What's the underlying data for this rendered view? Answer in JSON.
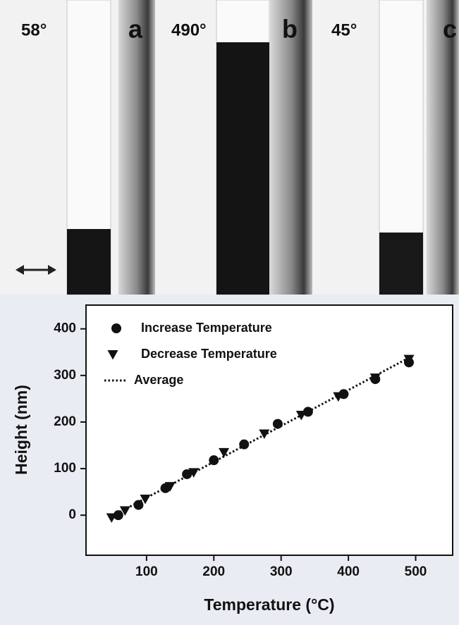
{
  "micrographs": [
    {
      "temperature": "58°",
      "label": "a"
    },
    {
      "temperature": "490°",
      "label": "b"
    },
    {
      "temperature": "45°",
      "label": "c"
    }
  ],
  "chart_data": {
    "type": "scatter",
    "xlabel": "Temperature (°C)",
    "ylabel": "Height (nm)",
    "xlim": [
      10,
      555
    ],
    "ylim": [
      -86,
      451
    ],
    "xticks": [
      100,
      200,
      300,
      400,
      500
    ],
    "yticks": [
      0,
      100,
      200,
      300,
      400
    ],
    "series": [
      {
        "name": "Increase Temperature",
        "marker": "circle",
        "color": "#111111",
        "x": [
          58,
          88,
          128,
          160,
          200,
          245,
          295,
          340,
          393,
          440,
          490
        ],
        "values": [
          0,
          22,
          58,
          88,
          118,
          152,
          196,
          222,
          260,
          292,
          328
        ]
      },
      {
        "name": "Decrease Temperature",
        "marker": "triangle",
        "color": "#111111",
        "x": [
          48,
          68,
          98,
          135,
          170,
          215,
          275,
          330,
          385,
          440,
          490
        ],
        "values": [
          -5,
          10,
          35,
          62,
          92,
          135,
          175,
          215,
          255,
          295,
          335
        ]
      },
      {
        "name": "Average",
        "marker": "dotted-line",
        "color": "#111111",
        "x": [
          45,
          490
        ],
        "values": [
          -5,
          338
        ]
      }
    ]
  }
}
